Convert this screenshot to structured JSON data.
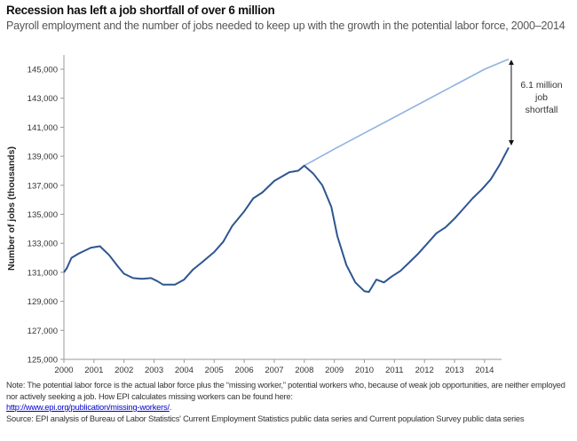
{
  "title": "Recession  has left a job shortfall of over 6 million",
  "subtitle": "Payroll employment and the number of jobs needed to keep up with the growth in the potential labor force, 2000–2014",
  "note": "Note:  The potential labor force is the actual labor force plus the “missing worker,” potential workers who, because of weak job opportunities, are neither employed nor actively seeking a job.  How EPI calculates missing workers can be found here:",
  "note_link": "http://www.epi.org/publication/missing-workers/",
  "source": "Source:  EPI analysis of Bureau of Labor Statistics' Current Employment Statistics public data series and Current population Survey public data series",
  "chart_data": {
    "type": "line",
    "title": "Recession  has left a job shortfall of over 6 million",
    "xlabel": "",
    "ylabel": "Number of jobs (thousands)",
    "xlim": [
      2000,
      2015
    ],
    "ylim": [
      125000,
      146000
    ],
    "xticks": [
      "2000",
      "2001",
      "2002",
      "2003",
      "2004",
      "2005",
      "2006",
      "2007",
      "2008",
      "2009",
      "2010",
      "2011",
      "2012",
      "2013",
      "2014"
    ],
    "yticks": [
      "125,000",
      "127,000",
      "129,000",
      "131,000",
      "133,000",
      "135,000",
      "137,000",
      "139,000",
      "141,000",
      "143,000",
      "145,000"
    ],
    "grid": false,
    "annotation": {
      "text": [
        "6.1 million",
        "job",
        "shortfall"
      ],
      "x": 2014.8,
      "from": 145600,
      "to": 139800
    },
    "colors": {
      "payroll": "#2e5590",
      "potential": "#8fb3e0"
    },
    "series": [
      {
        "key": "payroll",
        "x": [
          2000,
          2000.1,
          2000.25,
          2000.5,
          2000.9,
          2001.2,
          2001.5,
          2001.8,
          2002,
          2002.3,
          2002.6,
          2002.9,
          2003.1,
          2003.3,
          2003.7,
          2004,
          2004.3,
          2004.6,
          2005,
          2005.3,
          2005.6,
          2006,
          2006.3,
          2006.6,
          2007,
          2007.5,
          2007.8,
          2008,
          2008.3,
          2008.6,
          2008.9,
          2009.1,
          2009.4,
          2009.7,
          2010,
          2010.15,
          2010.4,
          2010.65,
          2010.9,
          2011.2,
          2011.5,
          2011.8,
          2012.1,
          2012.4,
          2012.7,
          2013,
          2013.3,
          2013.6,
          2013.9,
          2014.2,
          2014.5,
          2014.8
        ],
        "values": [
          131000,
          131300,
          132000,
          132300,
          132700,
          132800,
          132200,
          131400,
          130900,
          130600,
          130550,
          130600,
          130400,
          130150,
          130150,
          130500,
          131200,
          131700,
          132400,
          133100,
          134200,
          135200,
          136100,
          136500,
          137300,
          137900,
          138000,
          138350,
          137800,
          137000,
          135500,
          133500,
          131500,
          130300,
          129700,
          129650,
          130500,
          130300,
          130700,
          131100,
          131700,
          132300,
          133000,
          133700,
          134100,
          134700,
          135400,
          136100,
          136700,
          137400,
          138400,
          139600
        ]
      },
      {
        "key": "potential",
        "x": [
          2008,
          2009,
          2010,
          2011,
          2012,
          2013,
          2014,
          2014.8
        ],
        "values": [
          138350,
          139500,
          140600,
          141700,
          142800,
          143900,
          145000,
          145700
        ]
      }
    ]
  }
}
